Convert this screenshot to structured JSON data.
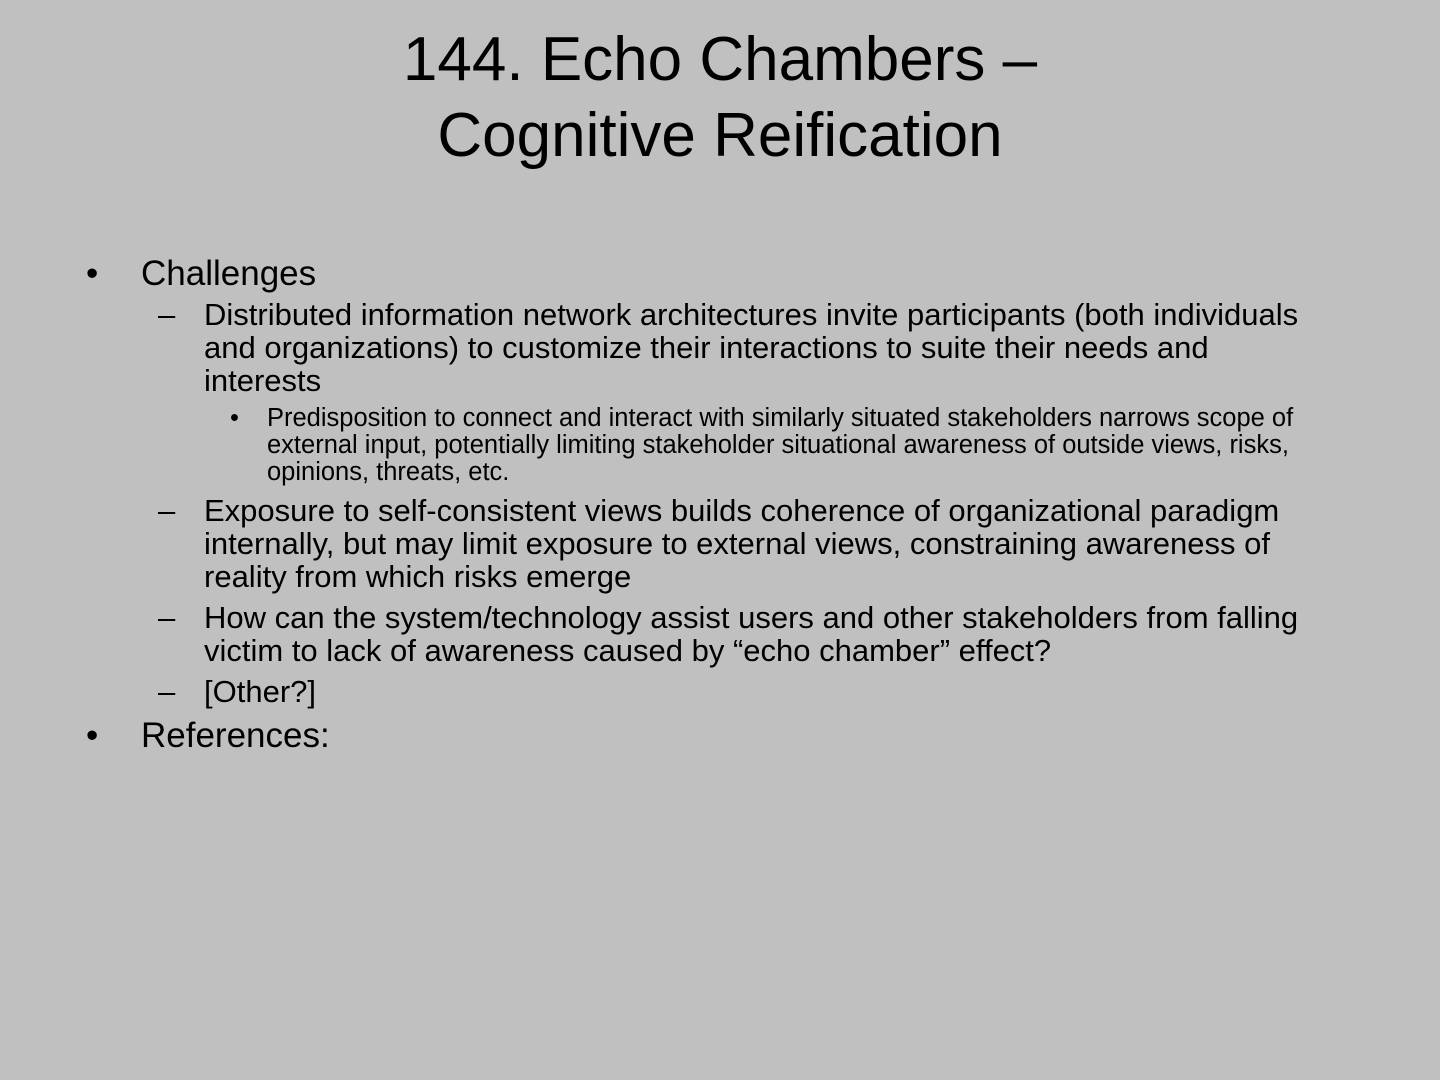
{
  "slide": {
    "title_line1": "144.  Echo Chambers –",
    "title_line2": "Cognitive Reification",
    "bullets": {
      "l1": "•",
      "l2": "–",
      "l3": "•"
    },
    "challenges": {
      "label": "Challenges",
      "items": [
        {
          "text": "Distributed information network architectures invite participants (both individuals and organizations) to customize their interactions to suite their needs and interests",
          "sub": "Predisposition to connect and interact with similarly situated stakeholders narrows scope of external input, potentially limiting stakeholder situational awareness of outside views, risks, opinions, threats, etc."
        },
        {
          "text": "Exposure to self-consistent views builds coherence of organizational paradigm internally, but may limit exposure to external views, constraining awareness of reality from which risks emerge"
        },
        {
          "text": "How can the system/technology assist users and other stakeholders from falling victim to lack of awareness caused by “echo chamber” effect?"
        },
        {
          "text": "[Other?]"
        }
      ]
    },
    "references": {
      "label": "References:"
    }
  }
}
